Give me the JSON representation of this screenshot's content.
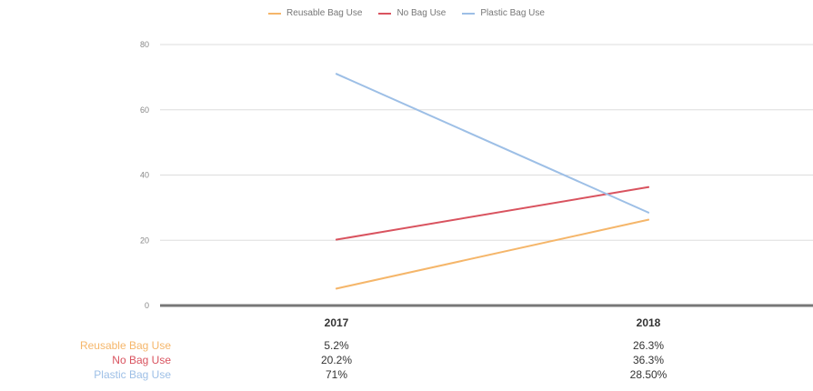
{
  "chart_data": {
    "type": "line",
    "categories": [
      "2017",
      "2018"
    ],
    "series": [
      {
        "name": "Reusable Bag Use",
        "color": "#f5b66a",
        "values": [
          5.2,
          26.3
        ],
        "labels": [
          "5.2%",
          "26.3%"
        ]
      },
      {
        "name": "No Bag Use",
        "color": "#d9535f",
        "values": [
          20.2,
          36.3
        ],
        "labels": [
          "20.2%",
          "36.3%"
        ]
      },
      {
        "name": "Plastic Bag Use",
        "color": "#9dbfe6",
        "values": [
          71,
          28.5
        ],
        "labels": [
          "71%",
          "28.50%"
        ]
      }
    ],
    "yticks": [
      0,
      20,
      40,
      60,
      80
    ],
    "ylim": [
      0,
      80
    ],
    "grid": true,
    "legend_position": "top-center"
  },
  "colors": {
    "grid": "#dddddd",
    "axis": "#777777",
    "tick_text": "#888888"
  }
}
